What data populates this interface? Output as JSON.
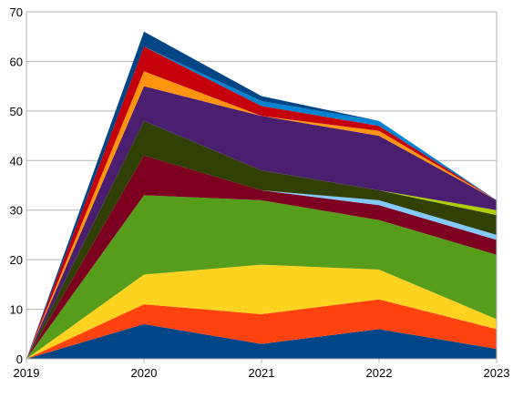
{
  "chart_data": {
    "type": "area",
    "stacked": true,
    "x": [
      "2019",
      "2020",
      "2021",
      "2022",
      "2023"
    ],
    "ylim": [
      0,
      70
    ],
    "yticks": [
      "0",
      "10",
      "20",
      "30",
      "40",
      "50",
      "60",
      "70"
    ],
    "grid": true,
    "legend": "none",
    "series": [
      {
        "color": "#004586",
        "values": [
          0,
          7,
          3,
          6,
          2
        ]
      },
      {
        "color": "#ff420e",
        "values": [
          0,
          4,
          6,
          6,
          4
        ]
      },
      {
        "color": "#ffd320",
        "values": [
          0,
          6,
          10,
          6,
          2
        ]
      },
      {
        "color": "#579d1c",
        "values": [
          0,
          16,
          13,
          10,
          13
        ]
      },
      {
        "color": "#7e0021",
        "values": [
          0,
          8,
          2,
          3,
          3
        ]
      },
      {
        "color": "#83caff",
        "values": [
          0,
          0,
          0,
          1,
          1
        ]
      },
      {
        "color": "#314004",
        "values": [
          0,
          7,
          4,
          2,
          4
        ]
      },
      {
        "color": "#aecf00",
        "values": [
          0,
          0,
          0,
          0,
          1
        ]
      },
      {
        "color": "#4b1f6f",
        "values": [
          0,
          7,
          11,
          11,
          2
        ]
      },
      {
        "color": "#ff950e",
        "values": [
          0,
          3,
          0,
          1,
          0
        ]
      },
      {
        "color": "#c5000b",
        "values": [
          0,
          5,
          2,
          1,
          0
        ]
      },
      {
        "color": "#0084d1",
        "values": [
          0,
          0,
          1,
          1,
          0
        ]
      },
      {
        "color": "#004586",
        "values": [
          0,
          3,
          1,
          0,
          0
        ]
      }
    ]
  }
}
